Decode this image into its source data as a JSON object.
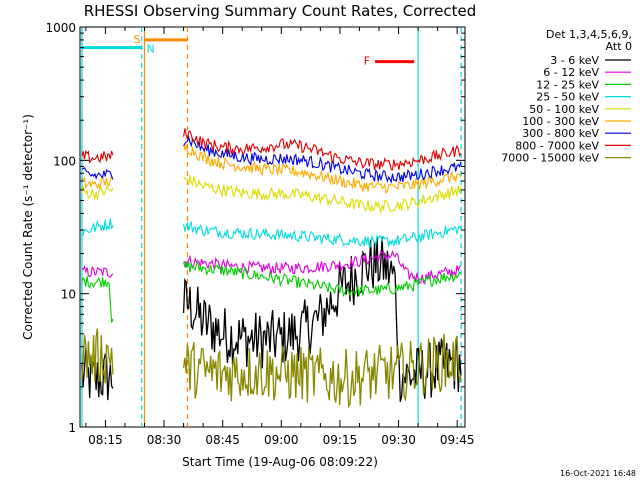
{
  "chart_data": {
    "type": "line",
    "title": "RHESSI Observing Summary Count Rates, Corrected",
    "xlabel": "Start Time (19-Aug-06 08:09:22)",
    "ylabel": "Corrected Count Rate (s⁻¹ detector⁻¹)",
    "x_units": "minutes after 08:00 UT",
    "xlim": [
      8.5,
      107
    ],
    "ylim": [
      1,
      1000
    ],
    "yscale": "log",
    "x_ticks": [
      {
        "value": 15,
        "label": "08:15"
      },
      {
        "value": 30,
        "label": "08:30"
      },
      {
        "value": 45,
        "label": "08:45"
      },
      {
        "value": 60,
        "label": "09:00"
      },
      {
        "value": 75,
        "label": "09:15"
      },
      {
        "value": 90,
        "label": "09:30"
      },
      {
        "value": 105,
        "label": "09:45"
      }
    ],
    "y_ticks": [
      {
        "value": 1,
        "label": "1"
      },
      {
        "value": 10,
        "label": "10"
      },
      {
        "value": 100,
        "label": "100"
      },
      {
        "value": 1000,
        "label": "1000"
      }
    ],
    "legend": {
      "title_lines": [
        "Det 1,3,4,5,6,9,",
        "Att 0"
      ],
      "placement": "right"
    },
    "footer_timestamp": "16-Oct-2021 16:48",
    "data_gaps": [
      [
        17,
        35
      ]
    ],
    "series": [
      {
        "name": "3 - 6 keV",
        "color": "#000000",
        "x": [
          9,
          12,
          15,
          16.5,
          36,
          40,
          45,
          50,
          55,
          60,
          65,
          70,
          75,
          78,
          82,
          86,
          89,
          90,
          93,
          97,
          101,
          106
        ],
        "y": [
          2.5,
          2.2,
          2.4,
          2.3,
          8.5,
          6.2,
          5.0,
          4.6,
          4.5,
          4.6,
          5.2,
          6.5,
          10.5,
          13,
          16.5,
          16.5,
          13,
          2.5,
          2.4,
          2.6,
          2.8,
          3.0
        ]
      },
      {
        "name": "6 - 12 keV",
        "color": "#dd00dd",
        "x": [
          9,
          12,
          16.5,
          36,
          40,
          45,
          50,
          55,
          60,
          65,
          70,
          75,
          80,
          85,
          89,
          92,
          96,
          100,
          106
        ],
        "y": [
          14.5,
          14.5,
          14.5,
          17.5,
          17,
          16.3,
          15.8,
          15.6,
          15.5,
          15.6,
          16,
          16.5,
          17.5,
          19,
          19.5,
          14,
          13,
          14,
          15
        ]
      },
      {
        "name": "12 - 25 keV",
        "color": "#00cc00",
        "x": [
          9,
          12,
          16,
          16.5,
          36,
          40,
          45,
          50,
          55,
          60,
          65,
          70,
          75,
          80,
          85,
          90,
          95,
          100,
          106
        ],
        "y": [
          12.5,
          12.2,
          12.5,
          6.5,
          16,
          15.5,
          15,
          14.2,
          13.5,
          12.8,
          12,
          11.3,
          10.6,
          10.5,
          10.6,
          11,
          11.8,
          13,
          14
        ]
      },
      {
        "name": "25 - 50 keV",
        "color": "#00dddd",
        "x": [
          9,
          12,
          16.5,
          36,
          40,
          45,
          50,
          55,
          60,
          65,
          70,
          75,
          80,
          85,
          90,
          95,
          100,
          106
        ],
        "y": [
          29,
          31,
          34,
          32,
          30,
          29,
          28.5,
          28,
          27.5,
          27,
          26,
          25.5,
          25,
          24.5,
          25,
          26.5,
          28.5,
          31
        ]
      },
      {
        "name": "50 - 100 keV",
        "color": "#dddd00",
        "x": [
          9,
          12,
          16.5,
          36,
          40,
          45,
          50,
          55,
          60,
          65,
          70,
          75,
          80,
          85,
          90,
          95,
          100,
          106
        ],
        "y": [
          58,
          56,
          60,
          72,
          64,
          60,
          57,
          56,
          56,
          55,
          52,
          49,
          46,
          45,
          46,
          49,
          54,
          60
        ]
      },
      {
        "name": "100 - 300 keV",
        "color": "#ffaa00",
        "x": [
          9,
          12,
          16.5,
          36,
          40,
          45,
          50,
          55,
          60,
          65,
          70,
          75,
          80,
          85,
          90,
          95,
          100,
          106
        ],
        "y": [
          68,
          65,
          70,
          125,
          105,
          95,
          90,
          86,
          84,
          82,
          76,
          70,
          65,
          63,
          63,
          66,
          71,
          77
        ]
      },
      {
        "name": "300 - 800 keV",
        "color": "#0000dd",
        "x": [
          9,
          12,
          16.5,
          36,
          40,
          45,
          50,
          55,
          60,
          65,
          70,
          75,
          80,
          85,
          90,
          95,
          100,
          106
        ],
        "y": [
          80,
          77,
          78,
          145,
          122,
          112,
          105,
          102,
          103,
          101,
          94,
          86,
          80,
          76,
          75,
          78,
          84,
          89
        ]
      },
      {
        "name": "800 - 7000 keV",
        "color": "#dd0000",
        "x": [
          9,
          12,
          16.5,
          36,
          40,
          45,
          50,
          55,
          60,
          65,
          70,
          75,
          80,
          85,
          90,
          95,
          100,
          106
        ],
        "y": [
          107,
          104,
          107,
          160,
          135,
          125,
          122,
          125,
          132,
          128,
          115,
          103,
          96,
          93,
          94,
          100,
          108,
          120
        ]
      },
      {
        "name": "7000 - 15000 keV",
        "color": "#888800",
        "x": [
          9,
          12,
          16.5,
          36,
          40,
          45,
          50,
          55,
          60,
          65,
          70,
          75,
          80,
          85,
          90,
          95,
          100,
          106
        ],
        "y": [
          3.5,
          3.3,
          3.5,
          2.8,
          2.6,
          2.5,
          2.6,
          2.6,
          2.5,
          2.5,
          2.4,
          2.3,
          2.4,
          2.5,
          2.6,
          2.8,
          3.0,
          3.2
        ]
      }
    ],
    "annotations": [
      {
        "label": "S",
        "color": "#ff8800",
        "x_range": [
          25,
          36
        ],
        "y": 800
      },
      {
        "label": "N",
        "color": "#00dddd",
        "x_range": [
          8.5,
          24.5
        ],
        "y": 700
      },
      {
        "label": "F",
        "color": "#ff0000",
        "x_range": [
          84,
          94
        ],
        "y": 550
      }
    ],
    "vertical_markers": [
      {
        "x": 25,
        "color": "#ff8800",
        "style": "solid"
      },
      {
        "x": 24.3,
        "color": "#00dddd",
        "style": "dashed"
      },
      {
        "x": 36,
        "color": "#ff8800",
        "style": "dashed"
      },
      {
        "x": 95,
        "color": "#00dddd",
        "style": "solid"
      },
      {
        "x": 106,
        "color": "#00dddd",
        "style": "dashed"
      },
      {
        "x": 9,
        "color": "#00dddd",
        "style": "solid"
      }
    ]
  }
}
